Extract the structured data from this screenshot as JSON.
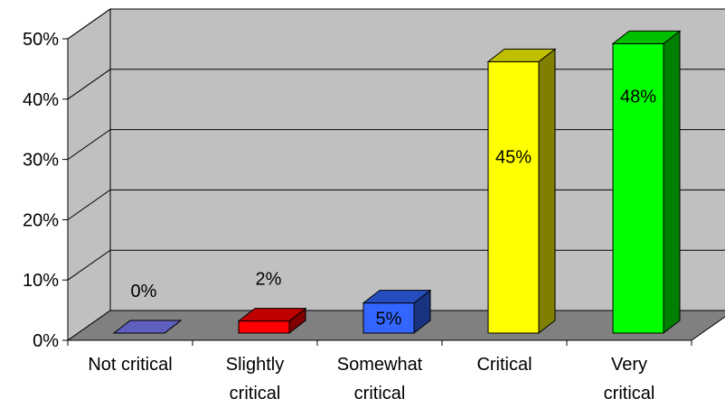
{
  "chart_data": {
    "type": "bar",
    "style": "3d-column",
    "categories": [
      "Not critical",
      "Slightly critical",
      "Somewhat critical",
      "Critical",
      "Very critical"
    ],
    "category_lines": [
      [
        "Not critical"
      ],
      [
        "Slightly",
        "critical"
      ],
      [
        "Somewhat",
        "critical"
      ],
      [
        "Critical"
      ],
      [
        "Very",
        "critical"
      ]
    ],
    "values": [
      0,
      2,
      5,
      45,
      48
    ],
    "data_labels": [
      "0%",
      "2%",
      "5%",
      "45%",
      "48%"
    ],
    "bar_colors": [
      "#7f7fff",
      "#ff0000",
      "#3366ff",
      "#ffff00",
      "#00ff00"
    ],
    "ylim": [
      0,
      50
    ],
    "yticks": [
      0,
      10,
      20,
      30,
      40,
      50
    ],
    "ytick_labels": [
      "0%",
      "10%",
      "20%",
      "30%",
      "40%",
      "50%"
    ],
    "grid": true,
    "legend": "none",
    "title": "",
    "xlabel": "",
    "ylabel": "",
    "colors": {
      "wall": "#c0c0c0",
      "floor": "#808080",
      "gridline": "#000000"
    }
  }
}
